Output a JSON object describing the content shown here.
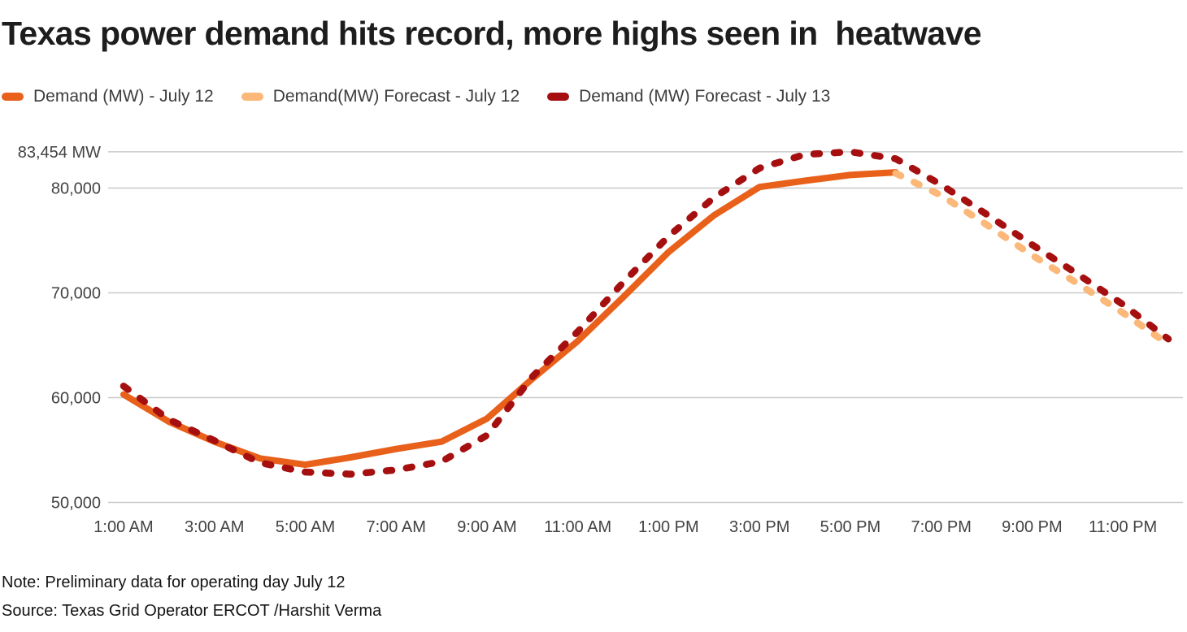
{
  "title": "Texas power demand hits record, more highs seen in  heatwave",
  "legend": {
    "items": [
      {
        "label": "Demand (MW) - July 12",
        "color": "#E8601A",
        "dash": false
      },
      {
        "label": "Demand(MW) Forecast - July 12",
        "color": "#FBB878",
        "dash": true
      },
      {
        "label": "Demand (MW) Forecast - July 13",
        "color": "#A50F0F",
        "dash": true
      }
    ]
  },
  "chart_data": {
    "type": "line",
    "title": "Texas power demand hits record, more highs seen in  heatwave",
    "xlabel": "",
    "ylabel": "MW",
    "x_tick_labels": [
      "1:00 AM",
      "3:00 AM",
      "5:00 AM",
      "7:00 AM",
      "9:00 AM",
      "11:00 AM",
      "1:00 PM",
      "3:00 PM",
      "5:00 PM",
      "7:00 PM",
      "9:00 PM",
      "11:00 PM"
    ],
    "y_ticks": [
      {
        "label": "83,454 MW",
        "value": 83454
      },
      {
        "label": "80,000",
        "value": 80000
      },
      {
        "label": "70,000",
        "value": 70000
      },
      {
        "label": "60,000",
        "value": 60000
      },
      {
        "label": "50,000",
        "value": 50000
      }
    ],
    "ylim": [
      50000,
      83454
    ],
    "grid": "horizontal",
    "legend_position": "top-left",
    "record_value_mw": 83454,
    "series": [
      {
        "name": "Demand (MW) - July 12",
        "color": "#E8601A",
        "dash": false,
        "start_hour": 1,
        "hours": [
          "1 AM",
          "2 AM",
          "3 AM",
          "4 AM",
          "5 AM",
          "6 AM",
          "7 AM",
          "8 AM",
          "9 AM",
          "10 AM",
          "11 AM",
          "12 PM",
          "1 PM",
          "2 PM",
          "3 PM",
          "4 PM",
          "5 PM",
          "6 PM"
        ],
        "values": [
          60300,
          57700,
          55800,
          54200,
          53600,
          54300,
          55100,
          55800,
          58000,
          61800,
          65400,
          69600,
          73900,
          77400,
          80100,
          80700,
          81250,
          81500
        ]
      },
      {
        "name": "Demand(MW) Forecast - July 12",
        "color": "#FBB878",
        "dash": true,
        "start_hour": 18,
        "hours": [
          "6 PM",
          "7 PM",
          "8 PM",
          "9 PM",
          "10 PM",
          "11 PM",
          "12 AM"
        ],
        "values": [
          81400,
          79300,
          76500,
          73600,
          70900,
          68100,
          65100
        ]
      },
      {
        "name": "Demand (MW) Forecast - July 13",
        "color": "#A50F0F",
        "dash": true,
        "start_hour": 1,
        "hours": [
          "1 AM",
          "2 AM",
          "3 AM",
          "4 AM",
          "5 AM",
          "6 AM",
          "7 AM",
          "8 AM",
          "9 AM",
          "10 AM",
          "11 AM",
          "12 PM",
          "1 PM",
          "2 PM",
          "3 PM",
          "4 PM",
          "5 PM",
          "6 PM",
          "7 PM",
          "8 PM",
          "9 PM",
          "10 PM",
          "11 PM",
          "12 AM"
        ],
        "values": [
          61100,
          57900,
          55900,
          53800,
          52900,
          52700,
          53100,
          53900,
          56400,
          62000,
          66300,
          71000,
          75400,
          79100,
          81900,
          83200,
          83454,
          82800,
          80300,
          77500,
          74600,
          71800,
          68900,
          65600
        ]
      }
    ],
    "colors": {
      "gridline": "#C9C9C9",
      "axis_text": "#424242",
      "title_text": "#1D1D1D"
    }
  },
  "footer": {
    "note": "Note: Preliminary data for operating day July 12",
    "source": "Source: Texas Grid Operator ERCOT /Harshit Verma"
  }
}
